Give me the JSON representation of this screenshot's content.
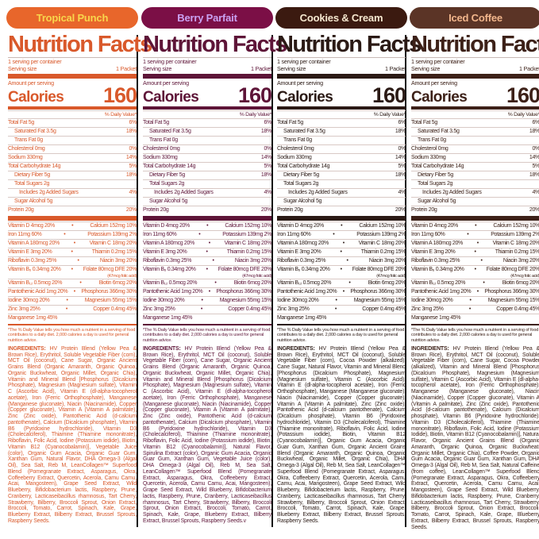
{
  "panels": [
    {
      "name": "Tropical Punch",
      "pill_bg": "#e8662b",
      "pill_text": "#f8d64c",
      "text_color": "#d9592b",
      "ingredients": "HV Protein Blend (Yellow Pea & Brown Rice), Erythritol, Soluble Vegetable Fiber (corn), MCT Oil (coconut), Cane Sugar, Organic Ancient Grains Blend (Organic Amaranth, Organic Quinoa, Organic Buckwheat, Organic Millet, Organic Chia), Vitamin and Mineral Blend [Phosphorus (Dicalcium Phosphate), Magnesium (Magnesium sulfate), Vitamin C (Ascorbic Acid), Vitamin E (dl-alpha-tocopherol acetate), Iron (Ferric Orthophosphate), Manganese (Manganese gluconate), Niacin (Niacinamide), Copper (Copper gluconate), Vitamin A (Vitamin A palmitate), Zinc (Zinc oxide), Pantothenic Acid (d-calcium pantothenate), Calcium (Dicalcium phosphate), Vitamin B6 (Pyridoxine hydrochloride), Vitamin D3 (Cholecalciferol), Thiamine (Thiamine mononitrate), Riboflavin, Folic Acid, Iodine (Potassium iodide), Biotin, Vitamin B12 (Cyanocobalamin)], Vegetable Juice (color), Organic Gum Acacia, Organic Guar Gum, Xanthan Gum, Natural Flavor, DHA Omega-3 (Algal Oil), Sea Salt, Reb M, LeanCollagen™ Superfood Blend (Pomegranate Extract, Asparagus, Okra, Coffeeberry Extract, Quercetin, Acerola, Camu Camu, Acai, Mangosteen), Grape Seed Extract, Wild Blueberry, Bifidobacterium lactis, Raspberry, Prune, Cranberry, Lacticaseibacillus rhamnosus, Tart Cherry, Strawberry, Bilberry, Broccoli Sprout, Onion Extract, Broccoli, Tomato, Carrot, Spinach, Kale, Grape, Blueberry Extract, Bilberry Extract, Brussel Sprouts, Raspberry Seeds."
    },
    {
      "name": "Berry Parfait",
      "pill_bg": "#7b0f46",
      "pill_text": "#caa2f2",
      "text_color": "#5e1538",
      "ingredients": "HV Protein Blend (Yellow Pea & Brown Rice), Erythritol, MCT Oil (coconut), Soluble Vegetable Fiber (corn), Cane Sugar, Organic Ancient Grains Blend (Organic Amaranth, Organic Quinoa, Organic Buckwheat, Organic Millet, Organic Chia), Vitamin and Mineral Blend [Phosphorus (Dicalcium Phosphate), Magnesium (Magnesium sulfate), Vitamin C (Ascorbic Acid), Vitamin E (dl-alpha-tocopherol acetate), Iron (Ferric Orthophosphate), Manganese (Manganese gluconate), Niacin (Niacinamide), Copper (Copper gluconate), Vitamin A (Vitamin A palmitate), Zinc (Zinc oxide), Pantothenic Acid (d-calcium pantothenate), Calcium (Dicalcium phosphate), Vitamin B6 (Pyridoxine hydrochloride), Vitamin D3 (Cholecalciferol), Thiamine (Thiamine mononitrate), Riboflavin, Folic Acid, Iodine (Potassium iodide), Biotin, Vitamin B12 (Cyanocobalamin)], Natural Flavor, Spirulina Extract (color), Organic Gum Acacia, Organic Guar Gum, Xanthan Gum, Vegetable Juice (color), DHA Omega-3 (Algal Oil), Reb M, Sea Salt, LeanCollagen™ Superfood Blend (Pomegranate Extract, Asparagus, Okra, Coffeeberry Extract, Quercetin, Acerola, Camu Camu, Acai, Mangosteen), Grape Seed Extract, Wild Blueberry, Bifidobacterium lactis, Raspberry, Prune, Cranberry, Lacticaseibacillus rhamnosus, Tart Cherry, Strawberry, Bilberry, Broccoli Sprout, Onion Extract, Broccoli, Tomato, Carrot, Spinach, Kale, Grape, Blueberry Extract, Bilberry Extract, Brussel Sprouts, Raspberry Seeds.v"
    },
    {
      "name": "Cookies & Cream",
      "pill_bg": "#3b1a10",
      "pill_text": "#f6e8cf",
      "text_color": "#2b1a15",
      "ingredients": "HV Protein Blend (Yellow Pea & Brown Rice), Erythritol, MCT Oil (coconut), Soluble Vegetable Fiber (corn), Cocoa Powder (alkalized), Cane Sugar, Natural Flavor, Vitamin and Mineral Blend [Phosphorus (Dicalcium Phosphate), Magnesium (Magnesium sulfate), Vitamin C (Ascorbic Acid), Vitamin E (dl-alpha-tocopherol acetate), Iron (Ferric Orthophosphate), Manganese (Manganese gluconate), Niacin (Niacinamide), Copper (Copper gluconate), Vitamin A (Vitamin A palmitate), Zinc (Zinc oxide), Pantothenic Acid (d-calcium pantothenate), Calcium (Dicalcium phosphate), Vitamin B6 (Pyridoxine hydrochloride), Vitamin D3 (Cholecalciferol), Thiamine (Thiamine mononitrate), Riboflavin, Folic Acid, Iodine (Potassium iodide), Biotin, Vitamin B12 (Cyanocobalamin)], Organic Gum Acacia, Organic Guar Gum, Xanthan Gum, Organic Ancient Grains Blend (Organic Amaranth, Organic Quinoa, Organic Buckwheat, Organic Millet, Organic Chia), DHA Omega-3 (Algal Oil), Reb M, Sea Salt, LeanCollagen™ Superfood Blend (Pomegranate Extract, Asparagus, Okra, Coffeeberry Extract, Quercetin, Acerola, Camu Camu, Acai, Mangosteen), Grape Seed Extract, Wild Blueberry, Bifidobacterium lactis, Raspberry, Prune, Cranberry, Lacticaseibacillus rhamnosus, Tart Cherry, Strawberry, Bilberry, Broccoli Sprout, Onion Extract, Broccoli, Tomato, Carrot, Spinach, Kale, Grape, Blueberry Extract, Bilberry Extract, Brussel Sprouts, Raspberry Seeds."
    },
    {
      "name": "Iced Coffee",
      "pill_bg": "#5b3426",
      "pill_text": "#f2b68c",
      "text_color": "#3d2118",
      "ingredients": "HV Protein Blend (Yellow Pea & Brown Rice), Erythritol, MCT Oil (coconut), Soluble Vegetable Fiber (corn), Cane Sugar, Cocoa Powder (alkalized), Vitamin and Mineral Blend [Phosphorus (Dicalcium Phosphate), Magnesium (Magnesium sulfate), Vitamin C (Ascorbic Acid), Vitamin E (dl-alpha-tocopherol acetate), Iron (Ferric Orthophosphate), Manganese (Manganese gluconate), Niacin (Niacinamide), Copper (Copper gluconate), Vitamin A (Vitamin A palmitate), Zinc (Zinc oxide), Pantothenic Acid (d-calcium pantothenate), Calcium (Dicalcium phosphate), Vitamin B6 (Pyridoxine hydrochloride), Vitamin D3 (Cholecalciferol), Thiamine (Thiamine mononitrate), Riboflavin, Folic Acid, Iodine (Potassium Iodide), Biotin, Vitamin B12 (Cyanocobalamin)], Natural Flavor, Organic Ancient Grains Blend (Organic Amaranth, Organic Quinoa, Organic Buckwheat, Organic Millet, Organic Chia), Coffee Powder, Organic Gum Acacia, Organic Guar Gum, Xanthan Gum, DHA Omega-3 (Algal Oil), Reb M, Sea Salt, Natural Caffeine (from coffee), LeanCollagen™ Superfood Blend (Pomegranate Extract, Asparagus, Okra, Coffeeberry Extract, Quercetin, Acerola, Camu Camu, Acai, Mangosteen), Grape Seed Extract, Wild Blueberry, Bifidobacterium lactis, Raspberry, Prune, Cranberry, Lacticaseibacillus rhamnosus, Tart Cherry, Strawberry, Bilberry, Broccoli Sprout, Onion Extract, Broccoli, Tomato, Carrot, Spinach, Kale, Grape, Blueberry Extract, Bilberry Extract, Brussel Sprouts, Raspberry Seeds."
    }
  ],
  "nutrition": {
    "title": "Nutrition Facts",
    "servings": "1 serving per container",
    "serving_size_label": "Serving size",
    "serving_size": "1 Packet",
    "amount_per_serving": "Amount per serving",
    "calories_label": "Calories",
    "calories": "160",
    "dv_header": "% Daily Value*",
    "rows": [
      {
        "label": "Total Fat 5g",
        "dv": "6%",
        "indent": 0
      },
      {
        "label": "Saturated Fat 3.5g",
        "dv": "18%",
        "indent": 1
      },
      {
        "label": "Trans Fat 0g",
        "dv": "",
        "indent": 1
      },
      {
        "label": "Cholesterol 0mg",
        "dv": "0%",
        "indent": 0
      },
      {
        "label": "Sodium 330mg",
        "dv": "14%",
        "indent": 0
      },
      {
        "label": "Total Carbohydrate 14g",
        "dv": "5%",
        "indent": 0
      },
      {
        "label": "Dietary Fiber 5g",
        "dv": "18%",
        "indent": 1
      },
      {
        "label": "Total Sugars 2g",
        "dv": "",
        "indent": 1
      },
      {
        "label": "Includes 2g Added Sugars",
        "dv": "4%",
        "indent": 2
      },
      {
        "label": "Sugar Alcohol 5g",
        "dv": "",
        "indent": 1
      },
      {
        "label": "Protein 20g",
        "dv": "20%",
        "indent": 0
      }
    ],
    "vitamins": [
      {
        "left": "Vitamin D 4mcg 20%",
        "right": "Calcium 152mg 10%"
      },
      {
        "left": "Iron 11mg 60%",
        "right": "Potassium 139mg 2%"
      },
      {
        "left": "Vitamin A 180mcg 20%",
        "right": "Vitamin C 18mg 20%"
      },
      {
        "left": "Vitamin E 3mg 20%",
        "right": "Thiamin 0.2mg 15%"
      },
      {
        "left": "Riboflavin 0.3mg 25%",
        "right": "Niacin 3mg 20%"
      },
      {
        "left": "Vitamin B₆ 0.34mg 20%",
        "right": "Folate 80mcg DFE 20%",
        "right_sub": "(47mcg folic acid)"
      },
      {
        "left": "Vitamin B₁₂ 0.5mcg 20%",
        "right": "Biotin 6mcg 20%"
      },
      {
        "left": "Pantothenic Acid 1mg 20%",
        "right": "Phosphorus 366mg 30%"
      },
      {
        "left": "Iodine 30mcg 20%",
        "right": "Magnesium 55mg 15%"
      },
      {
        "left": "Zinc 3mg 25%",
        "right": "Copper 0.4mg 45%"
      },
      {
        "left": "Manganese 1mg 45%",
        "right": ""
      }
    ],
    "bullet": "•",
    "footnote": "*The % Daily Value tells you how much a nutrient in a serving of food contributes to a daily diet. 2,000 calories a day is used for general nutrition advice.",
    "ingredients_label": "INGREDIENTS:"
  }
}
